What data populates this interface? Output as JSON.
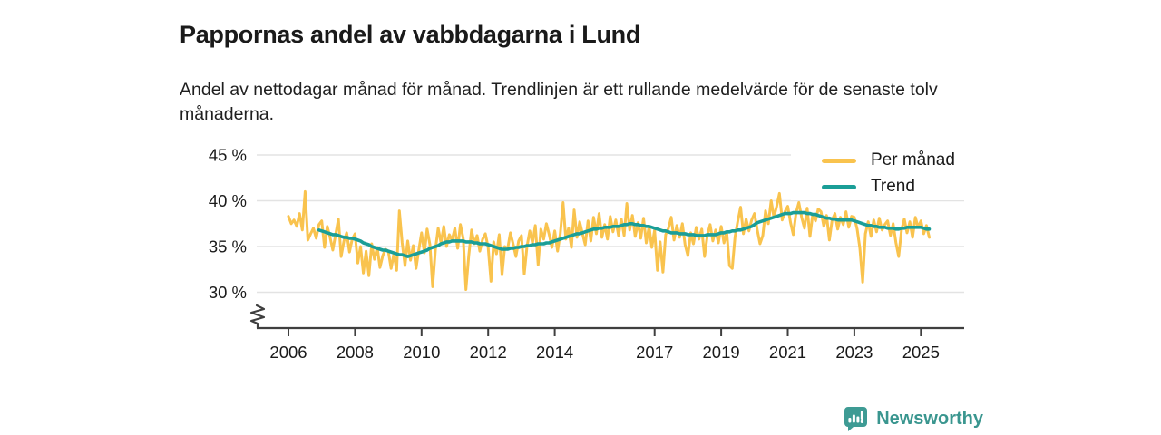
{
  "header": {
    "title": "Pappornas andel av vabbdagarna i Lund",
    "subtitle": "Andel av nettodagar månad för månad. Trendlinjen är ett rullande medelvärde för de senaste tolv månaderna."
  },
  "footer": {
    "brand": "Newsworthy",
    "logo_icon": "bar-chart-speech-bubble-icon",
    "brand_color": "#3a968f",
    "logo_bg_color": "#3e9b94"
  },
  "chart_data": {
    "type": "line",
    "title": "Pappornas andel av vabbdagarna i Lund",
    "xlabel": "",
    "ylabel": "",
    "unit": "%",
    "ylim": [
      30,
      45
    ],
    "axis_break": true,
    "grid": true,
    "y_ticks": [
      {
        "value": 45,
        "label": "45 %"
      },
      {
        "value": 40,
        "label": "40 %"
      },
      {
        "value": 35,
        "label": "35 %"
      },
      {
        "value": 30,
        "label": "30 %"
      }
    ],
    "x_tick_years": [
      2006,
      2008,
      2010,
      2012,
      2014,
      2017,
      2019,
      2021,
      2023,
      2025
    ],
    "x_range": {
      "start_year": 2006,
      "start_month": 1,
      "end_year": 2025,
      "end_month": 4
    },
    "colors": {
      "axis": "#3f3f3f",
      "grid": "#e3e3e3",
      "tick_text": "#1a1a1a"
    },
    "legend": {
      "position": "top-right",
      "items": [
        {
          "label": "Per månad",
          "color": "#f9c34e"
        },
        {
          "label": "Trend",
          "color": "#1a9e97"
        }
      ]
    },
    "series": [
      {
        "name": "Per månad",
        "color": "#f9c34e",
        "width": 3,
        "monthly": {
          "2006": [
            38.3,
            37.5,
            37.9,
            37.2,
            38.6,
            36.8,
            41.0,
            35.7,
            36.4,
            37.0,
            35.9,
            37.4
          ],
          "2007": [
            37.8,
            34.9,
            37.2,
            36.0,
            34.6,
            36.3,
            38.0,
            33.9,
            35.6,
            36.5,
            34.4,
            35.8
          ],
          "2008": [
            36.4,
            33.2,
            35.0,
            32.1,
            34.5,
            31.8,
            35.3,
            33.6,
            34.9,
            32.7,
            34.0,
            34.7
          ],
          "2009": [
            34.5,
            32.6,
            34.2,
            32.4,
            38.9,
            35.4,
            32.9,
            35.6,
            33.5,
            35.1,
            32.6,
            34.6
          ],
          "2010": [
            36.5,
            34.3,
            36.9,
            35.2,
            30.6,
            34.7,
            37.0,
            35.4,
            37.2,
            35.0,
            36.3,
            35.7
          ],
          "2011": [
            37.0,
            34.8,
            37.4,
            35.9,
            30.3,
            34.0,
            36.8,
            35.3,
            36.2,
            34.5,
            35.8,
            36.4
          ],
          "2012": [
            34.9,
            31.2,
            35.5,
            34.2,
            36.3,
            31.9,
            35.0,
            34.7,
            36.5,
            35.3,
            33.9,
            35.6
          ],
          "2013": [
            36.2,
            32.0,
            35.0,
            36.7,
            35.4,
            37.3,
            33.0,
            36.9,
            35.8,
            37.5,
            36.3,
            34.9
          ],
          "2014": [
            36.7,
            34.5,
            36.4,
            39.8,
            35.8,
            37.0,
            34.9,
            39.0,
            36.0,
            37.7,
            36.4,
            35.2
          ],
          "2015": [
            37.8,
            35.6,
            38.2,
            36.4,
            38.6,
            36.0,
            37.4,
            35.8,
            38.3,
            36.6,
            37.9,
            36.2
          ],
          "2016": [
            38.0,
            36.2,
            39.7,
            36.8,
            38.4,
            36.1,
            37.6,
            35.9,
            38.1,
            35.4,
            37.2,
            34.9
          ],
          "2017": [
            36.8,
            32.4,
            35.5,
            32.2,
            36.3,
            37.0,
            38.2,
            35.7,
            37.3,
            36.0,
            37.5,
            35.2
          ],
          "2018": [
            34.0,
            36.5,
            35.3,
            37.1,
            35.8,
            36.9,
            33.9,
            36.2,
            37.4,
            35.6,
            36.8,
            35.4
          ],
          "2019": [
            37.2,
            35.4,
            36.6,
            32.9,
            32.6,
            36.1,
            37.8,
            39.3,
            36.4,
            38.0,
            36.7,
            37.9
          ],
          "2020": [
            38.6,
            36.8,
            35.3,
            36.2,
            38.9,
            37.5,
            40.0,
            38.2,
            39.4,
            40.8,
            37.9,
            38.8
          ],
          "2021": [
            39.4,
            37.6,
            36.3,
            38.7,
            39.8,
            38.2,
            37.0,
            39.2,
            36.1,
            38.5,
            37.8,
            39.1
          ],
          "2022": [
            38.8,
            37.2,
            38.4,
            35.7,
            37.9,
            38.6,
            36.9,
            38.2,
            37.4,
            38.8,
            37.1,
            38.3
          ],
          "2023": [
            38.2,
            36.9,
            34.8,
            31.1,
            36.4,
            37.7,
            36.1,
            37.9,
            36.6,
            38.1,
            36.8,
            37.4
          ],
          "2024": [
            37.8,
            36.2,
            37.5,
            35.4,
            33.9,
            36.8,
            38.0,
            36.5,
            37.7,
            36.0,
            38.2,
            37.1
          ],
          "2025": [
            37.8,
            36.4,
            37.3,
            36.0
          ]
        }
      },
      {
        "name": "Trend",
        "color": "#1a9e97",
        "width": 3.6,
        "monthly": {
          "2006": [
            null,
            null,
            null,
            null,
            null,
            null,
            null,
            null,
            null,
            null,
            null,
            36.8
          ],
          "2007": [
            36.7,
            36.6,
            36.5,
            36.4,
            36.3,
            36.3,
            36.2,
            36.1,
            36.0,
            36.0,
            35.9,
            35.9
          ],
          "2008": [
            35.8,
            35.7,
            35.6,
            35.4,
            35.3,
            35.2,
            35.0,
            34.9,
            34.8,
            34.7,
            34.6,
            34.6
          ],
          "2009": [
            34.5,
            34.4,
            34.3,
            34.2,
            34.1,
            34.1,
            34.0,
            33.9,
            34.0,
            34.1,
            34.2,
            34.3
          ],
          "2010": [
            34.4,
            34.5,
            34.6,
            34.8,
            34.9,
            35.0,
            35.1,
            35.3,
            35.4,
            35.5,
            35.5,
            35.6
          ],
          "2011": [
            35.6,
            35.6,
            35.6,
            35.6,
            35.5,
            35.5,
            35.5,
            35.4,
            35.4,
            35.3,
            35.3,
            35.3
          ],
          "2012": [
            35.2,
            35.1,
            35.0,
            34.9,
            34.8,
            34.7,
            34.7,
            34.7,
            34.8,
            34.8,
            34.9,
            34.9
          ],
          "2013": [
            35.0,
            35.0,
            35.1,
            35.1,
            35.2,
            35.2,
            35.3,
            35.3,
            35.3,
            35.4,
            35.4,
            35.5
          ],
          "2014": [
            35.6,
            35.7,
            35.8,
            35.9,
            36.0,
            36.1,
            36.2,
            36.3,
            36.4,
            36.4,
            36.5,
            36.6
          ],
          "2015": [
            36.7,
            36.8,
            36.9,
            36.9,
            37.0,
            37.0,
            37.1,
            37.1,
            37.1,
            37.2,
            37.2,
            37.2
          ],
          "2016": [
            37.3,
            37.4,
            37.4,
            37.5,
            37.5,
            37.4,
            37.4,
            37.3,
            37.3,
            37.2,
            37.2,
            37.1
          ],
          "2017": [
            37.0,
            36.9,
            36.8,
            36.7,
            36.7,
            36.6,
            36.5,
            36.5,
            36.5,
            36.4,
            36.4,
            36.4
          ],
          "2018": [
            36.3,
            36.3,
            36.3,
            36.2,
            36.2,
            36.2,
            36.2,
            36.3,
            36.3,
            36.3,
            36.3,
            36.4
          ],
          "2019": [
            36.5,
            36.5,
            36.6,
            36.6,
            36.7,
            36.7,
            36.8,
            36.8,
            36.9,
            37.0,
            37.1,
            37.2
          ],
          "2020": [
            37.4,
            37.6,
            37.7,
            37.8,
            37.9,
            38.0,
            38.1,
            38.2,
            38.3,
            38.4,
            38.5,
            38.6
          ],
          "2021": [
            38.6,
            38.6,
            38.7,
            38.7,
            38.7,
            38.7,
            38.7,
            38.6,
            38.6,
            38.5,
            38.5,
            38.4
          ],
          "2022": [
            38.3,
            38.2,
            38.1,
            38.1,
            38.0,
            38.0,
            37.9,
            37.9,
            37.9,
            37.9,
            37.9,
            37.9
          ],
          "2023": [
            37.8,
            37.7,
            37.6,
            37.5,
            37.4,
            37.3,
            37.3,
            37.2,
            37.2,
            37.1,
            37.1,
            37.1
          ],
          "2024": [
            37.0,
            37.0,
            37.0,
            36.9,
            36.9,
            37.0,
            37.0,
            37.1,
            37.1,
            37.1,
            37.1,
            37.1
          ],
          "2025": [
            37.1,
            37.0,
            36.9,
            36.9
          ]
        }
      }
    ]
  }
}
